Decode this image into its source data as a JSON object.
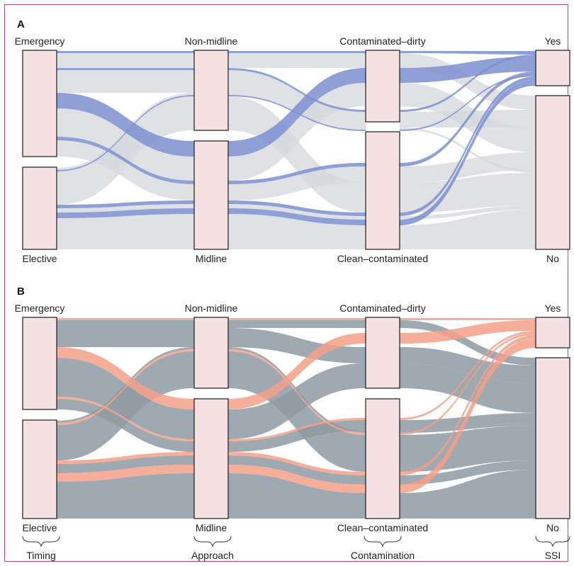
{
  "panels": [
    {
      "label": "A",
      "axes": [
        {
          "top": "Emergency",
          "bottom": "Elective"
        },
        {
          "top": "Non-midline",
          "bottom": "Midline"
        },
        {
          "top": "Contaminated–dirty",
          "bottom": "Clean–contaminated"
        },
        {
          "top": "Yes",
          "bottom": "No"
        }
      ],
      "colors": {
        "highlight": "#7b8fd0",
        "background": "#d4d7dc"
      }
    },
    {
      "label": "B",
      "axes": [
        {
          "top": "Emergency",
          "bottom": "Elective"
        },
        {
          "top": "Non-midline",
          "bottom": "Midline"
        },
        {
          "top": "Contaminated–dirty",
          "bottom": "Clean–contaminated"
        },
        {
          "top": "Yes",
          "bottom": "No"
        }
      ],
      "colors": {
        "highlight": "#f3a088",
        "background": "#8e9aa3"
      }
    }
  ],
  "axis_titles": [
    "Timing",
    "Approach",
    "Contamination",
    "SSI"
  ]
}
